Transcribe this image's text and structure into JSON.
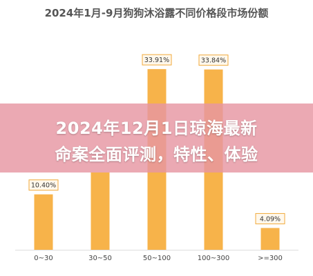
{
  "chart_data": {
    "type": "bar",
    "title": "2024年1月-9月狗狗沐浴露不同价格段市场份额",
    "xlabel": "",
    "ylabel": "",
    "categories": [
      "0~30",
      "30~50",
      "50~100",
      "100~300",
      ">=300"
    ],
    "values": [
      10.4,
      null,
      33.91,
      33.84,
      4.09
    ],
    "data_labels": [
      "10.40%",
      "",
      "33.91%",
      "33.84%",
      "4.09%"
    ],
    "ylim": [
      0,
      36
    ],
    "grid": false,
    "bar_color": "#f7b34a",
    "label_border_color": "#f0a93a"
  },
  "banner": {
    "line1": "2024年12月1日琼海最新",
    "line2": "命案全面评测，特性、体验",
    "color": "#e796a2"
  }
}
